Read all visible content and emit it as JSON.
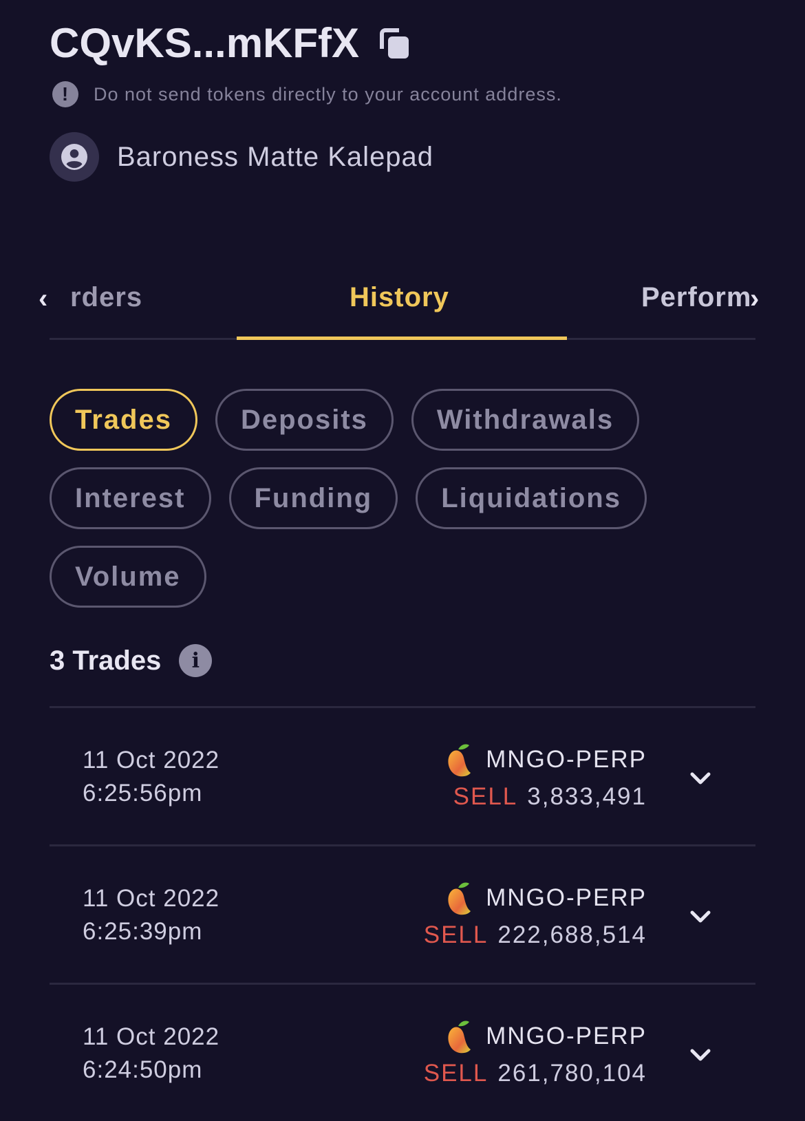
{
  "account": {
    "address": "CQvKS...mKFfX",
    "warning": "Do not send tokens directly to your account address.",
    "profile_name": "Baroness Matte Kalepad"
  },
  "tabs": {
    "items": [
      {
        "label": "rders"
      },
      {
        "label": "History"
      },
      {
        "label": "Perform"
      }
    ],
    "active": "History"
  },
  "filters": [
    {
      "label": "Trades",
      "active": true
    },
    {
      "label": "Deposits"
    },
    {
      "label": "Withdrawals"
    },
    {
      "label": "Interest"
    },
    {
      "label": "Funding"
    },
    {
      "label": "Liquidations"
    },
    {
      "label": "Volume"
    }
  ],
  "trades_count": "3 Trades",
  "trades": [
    {
      "date": "11 Oct 2022",
      "time": "6:25:56pm",
      "market": "MNGO-PERP",
      "side": "SELL",
      "size": "3,833,491"
    },
    {
      "date": "11 Oct 2022",
      "time": "6:25:39pm",
      "market": "MNGO-PERP",
      "side": "SELL",
      "size": "222,688,514"
    },
    {
      "date": "11 Oct 2022",
      "time": "6:24:50pm",
      "market": "MNGO-PERP",
      "side": "SELL",
      "size": "261,780,104"
    }
  ],
  "colors": {
    "background": "#141127",
    "accent": "#f0c75a",
    "sell": "#e0584e"
  }
}
